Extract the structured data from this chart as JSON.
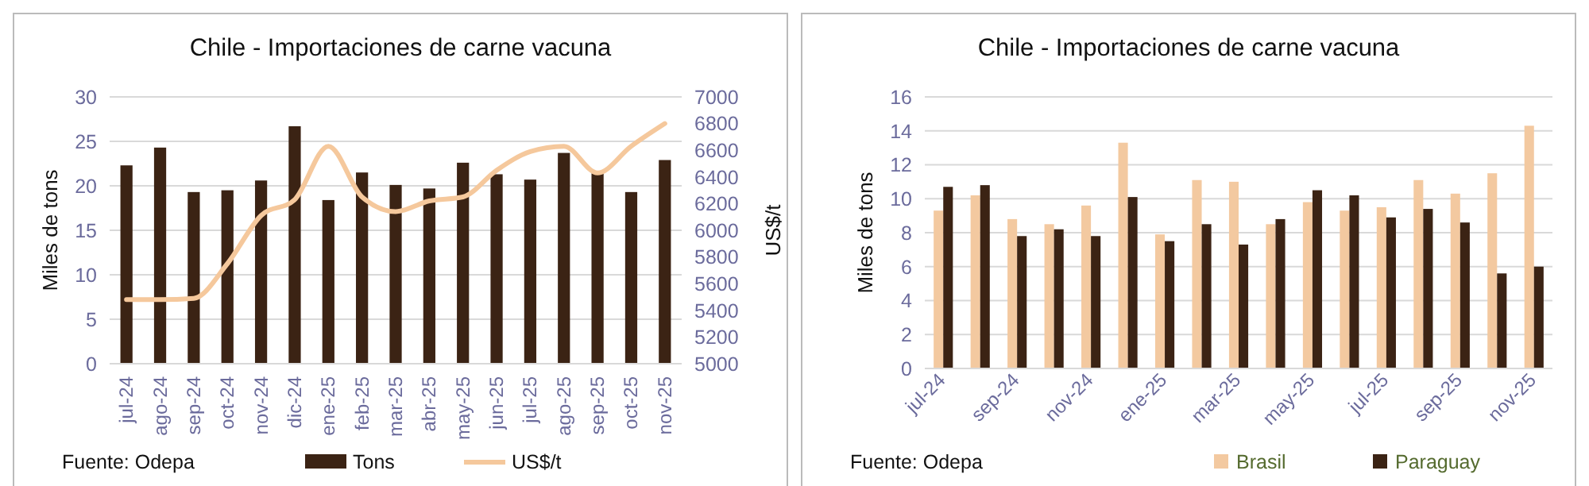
{
  "chart_data": [
    {
      "type": "bar",
      "title": "Chile - Importaciones de carne vacuna",
      "ylabel": "Miles de tons",
      "y2label": "US$/t",
      "categories": [
        "jul-24",
        "ago-24",
        "sep-24",
        "oct-24",
        "nov-24",
        "dic-24",
        "ene-25",
        "feb-25",
        "mar-25",
        "abr-25",
        "may-25",
        "jun-25",
        "jul-25",
        "ago-25",
        "sep-25",
        "oct-25",
        "nov-25"
      ],
      "series": [
        {
          "name": "Tons",
          "color": "#3b2314",
          "values": [
            22.3,
            24.3,
            19.3,
            19.5,
            20.6,
            26.7,
            18.4,
            21.5,
            20.1,
            19.7,
            22.6,
            21.3,
            20.7,
            23.7,
            21.4,
            19.3,
            22.9
          ]
        },
        {
          "name": "US$/t",
          "type": "line",
          "axis": "y2",
          "color": "#f5c89c",
          "values": [
            5480,
            5480,
            5490,
            5750,
            6110,
            6230,
            6630,
            6250,
            6140,
            6220,
            6250,
            6450,
            6590,
            6630,
            6430,
            6630,
            6800
          ]
        }
      ],
      "ylim": [
        0,
        30
      ],
      "yticks": [
        0,
        5,
        10,
        15,
        20,
        25,
        30
      ],
      "y2lim": [
        5000,
        7000
      ],
      "y2ticks": [
        5000,
        5200,
        5400,
        5600,
        5800,
        6000,
        6200,
        6400,
        6600,
        6800,
        7000
      ],
      "grid": "y",
      "legend": "bottom",
      "marker": "none",
      "line_style": "solid",
      "annotations": [
        "Fuente: Odepa"
      ]
    },
    {
      "type": "bar",
      "title": "Chile - Importaciones de carne vacuna",
      "ylabel": "Miles de tons",
      "categories": [
        "jul-24",
        null,
        "sep-24",
        null,
        "nov-24",
        null,
        "ene-25",
        null,
        "mar-25",
        null,
        "may-25",
        null,
        "jul-25",
        null,
        "sep-25",
        null,
        "nov-25"
      ],
      "series": [
        {
          "name": "Brasil",
          "color": "#f3c9a0",
          "values": [
            9.3,
            10.2,
            8.8,
            8.5,
            9.6,
            13.3,
            7.9,
            11.1,
            11.0,
            8.5,
            9.8,
            9.3,
            9.5,
            11.1,
            10.3,
            11.5,
            14.3
          ]
        },
        {
          "name": "Paraguay",
          "color": "#3b2314",
          "values": [
            10.7,
            10.8,
            7.8,
            8.2,
            7.8,
            10.1,
            7.5,
            8.5,
            7.3,
            8.8,
            10.5,
            10.2,
            8.9,
            9.4,
            8.6,
            5.6,
            6.0
          ]
        }
      ],
      "ylim": [
        0,
        16
      ],
      "yticks": [
        0,
        2,
        4,
        6,
        8,
        10,
        12,
        14,
        16
      ],
      "grid": "y",
      "legend": "bottom",
      "annotations": [
        "Fuente: Odepa"
      ]
    }
  ]
}
